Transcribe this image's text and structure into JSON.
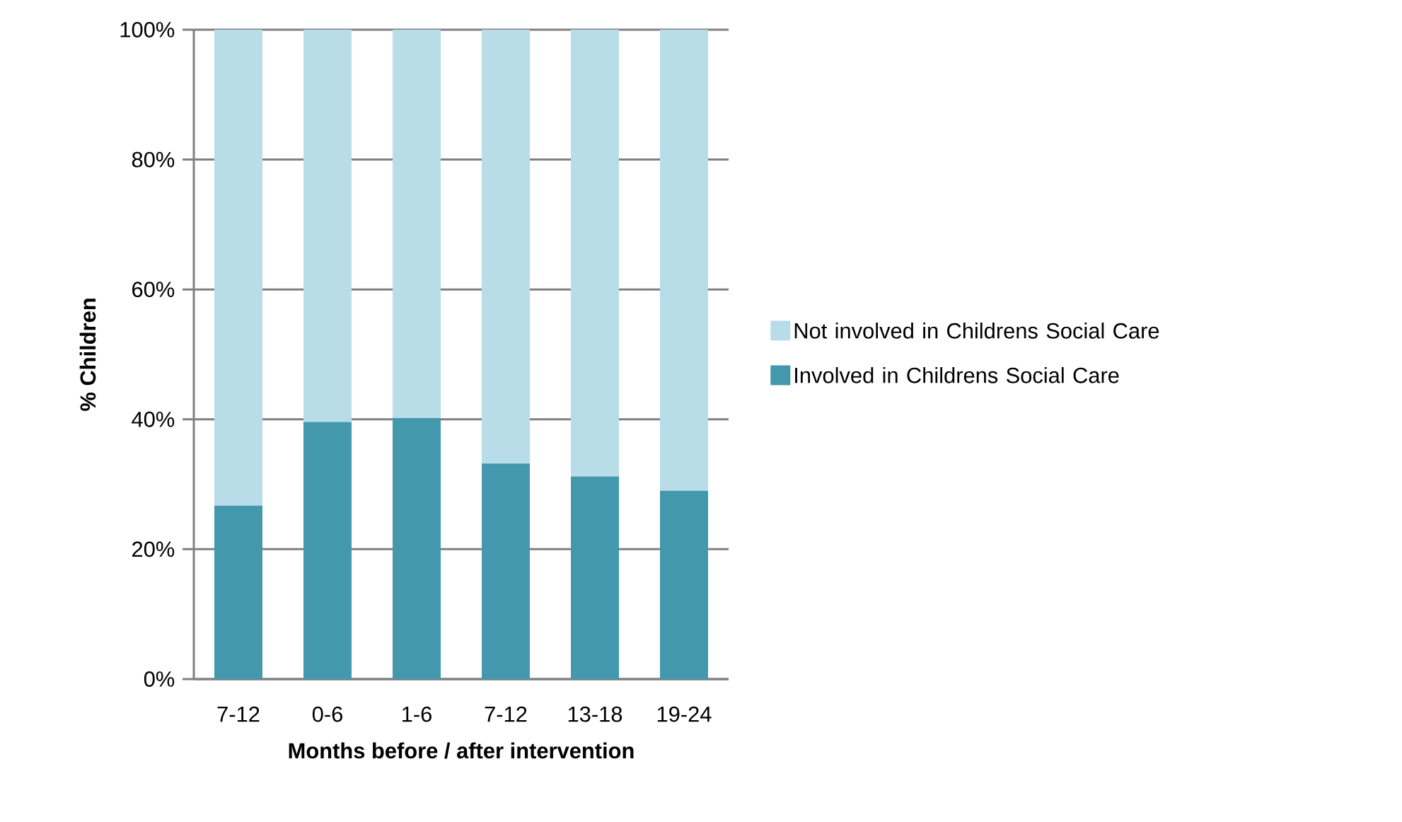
{
  "chart_data": {
    "type": "bar",
    "stacked": true,
    "xlabel": "Months before / after intervention",
    "ylabel": "% Children",
    "categories": [
      "7-12",
      "0-6",
      "1-6",
      "7-12",
      "13-18",
      "19-24"
    ],
    "series": [
      {
        "name": "Involved in Childrens Social Care",
        "color": "#4398ae",
        "values": [
          26.7,
          39.6,
          40.2,
          33.2,
          31.2,
          29
        ]
      },
      {
        "name": "Not involved in Childrens Social Care",
        "color": "#b8dde8",
        "values": [
          73.3,
          60.4,
          59.8,
          66.8,
          68.8,
          71
        ]
      }
    ],
    "ylim": [
      0,
      100
    ],
    "yticks": [
      {
        "value": 0,
        "label": "0%"
      },
      {
        "value": 20,
        "label": "20%"
      },
      {
        "value": 40,
        "label": "40%"
      },
      {
        "value": 60,
        "label": "60%"
      },
      {
        "value": 80,
        "label": "80%"
      },
      {
        "value": 100,
        "label": "100%"
      }
    ],
    "grid": "y",
    "legend": "right"
  }
}
